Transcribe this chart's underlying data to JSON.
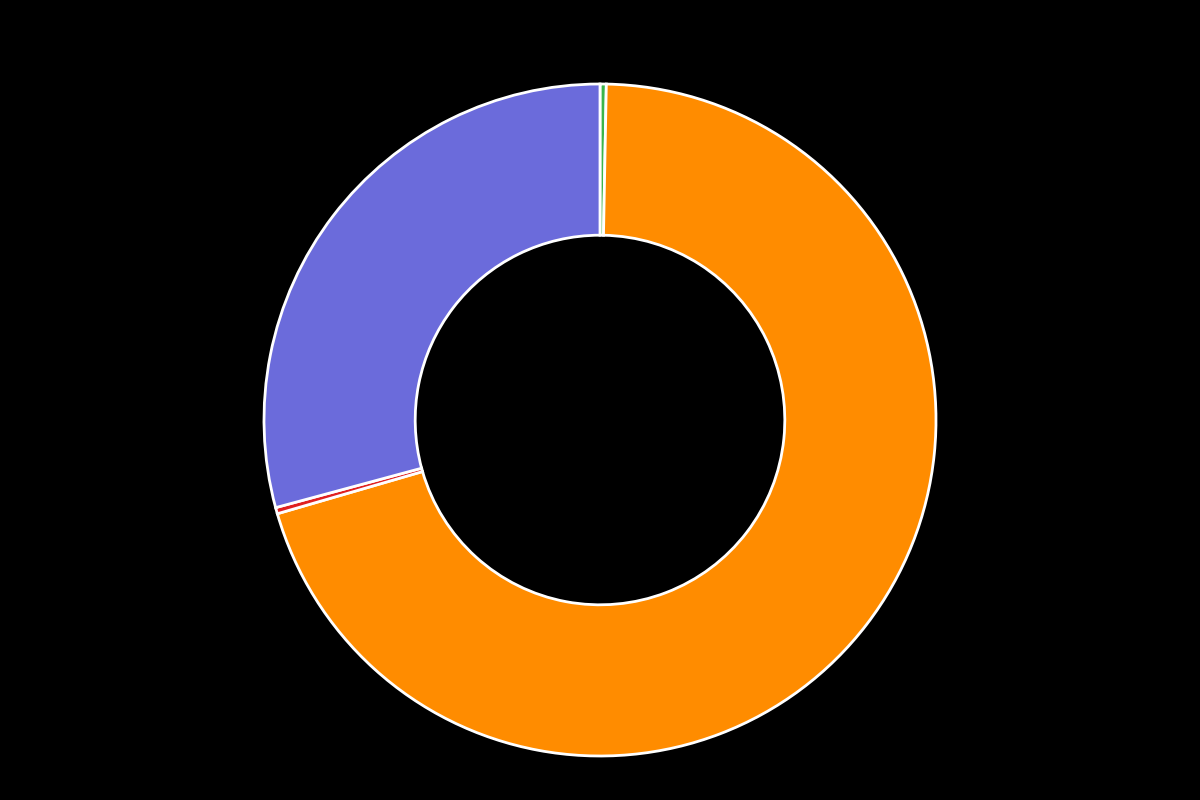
{
  "values": [
    0.3,
    70.2,
    0.3,
    29.2
  ],
  "colors": [
    "#3cb54a",
    "#ff8c00",
    "#e02020",
    "#6b6bdb"
  ],
  "legend_labels": [
    "",
    "",
    "",
    ""
  ],
  "background_color": "#000000",
  "wedge_linewidth": 2.0,
  "wedge_linecolor": "#ffffff",
  "donut_width": 0.45,
  "startangle": 90,
  "figsize": [
    12.0,
    8.0
  ],
  "dpi": 100
}
